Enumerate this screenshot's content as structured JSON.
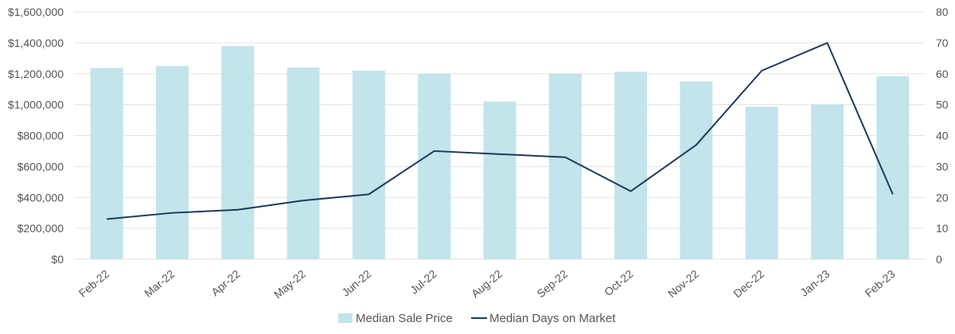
{
  "chart_data": {
    "type": "bar",
    "categories": [
      "Feb-22",
      "Mar-22",
      "Apr-22",
      "May-22",
      "Jun-22",
      "Jul-22",
      "Aug-22",
      "Sep-22",
      "Oct-22",
      "Nov-22",
      "Dec-22",
      "Jan-23",
      "Feb-23"
    ],
    "series": [
      {
        "name": "Median Sale Price",
        "type": "bar",
        "axis": "left",
        "color": "#c2e4ea",
        "values": [
          1237000,
          1250000,
          1380000,
          1240000,
          1220000,
          1200000,
          1020000,
          1200000,
          1213000,
          1150000,
          987000,
          1002000,
          1185000
        ]
      },
      {
        "name": "Median Days on Market",
        "type": "line",
        "axis": "right",
        "color": "#1b3a5c",
        "values": [
          13,
          15,
          16,
          19,
          21,
          35,
          34,
          33,
          22,
          37,
          61,
          70,
          21
        ]
      }
    ],
    "ylim_left": [
      0,
      1600000
    ],
    "ylim_right": [
      0,
      80
    ],
    "left_ticks": [
      "$0",
      "$200,000",
      "$400,000",
      "$600,000",
      "$800,000",
      "$1,000,000",
      "$1,200,000",
      "$1,400,000",
      "$1,600,000"
    ],
    "right_ticks": [
      "0",
      "10",
      "20",
      "30",
      "40",
      "50",
      "60",
      "70",
      "80"
    ],
    "grid": true,
    "legend_position": "bottom",
    "xlabel": "",
    "ylabel": ""
  }
}
